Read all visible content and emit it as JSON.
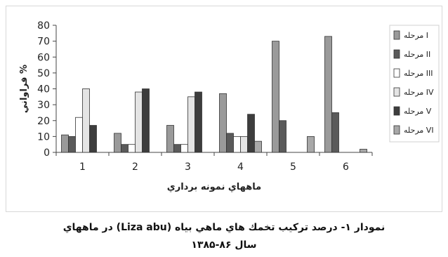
{
  "chart_data": {
    "type": "bar",
    "title": "",
    "xlabel": "ماههاي نمونه برداري",
    "ylabel": "فراواني %",
    "categories": [
      "1",
      "2",
      "3",
      "4",
      "5",
      "6"
    ],
    "ylim": [
      0,
      80
    ],
    "yticks": [
      "0",
      "10",
      "20",
      "30",
      "40",
      "50",
      "60",
      "70",
      "80"
    ],
    "grid": false,
    "legend": "right",
    "series": [
      {
        "name": "مرحله I",
        "color": "#9a9a9a",
        "values": [
          11,
          12,
          17,
          37,
          70,
          73
        ]
      },
      {
        "name": "مرحله II",
        "color": "#5a5a5a",
        "values": [
          10,
          5,
          5,
          12,
          20,
          25
        ]
      },
      {
        "name": "مرحله III",
        "color": "#ffffff",
        "values": [
          22,
          5,
          5,
          10,
          0,
          0
        ]
      },
      {
        "name": "مرحله IV",
        "color": "#e4e4e4",
        "values": [
          40,
          38,
          35,
          10,
          0,
          0
        ]
      },
      {
        "name": "مرحله V",
        "color": "#3d3d3d",
        "values": [
          17,
          40,
          38,
          24,
          0,
          0
        ]
      },
      {
        "name": "مرحله VI",
        "color": "#a8a8a8",
        "values": [
          0,
          0,
          0,
          7,
          10,
          2
        ]
      }
    ]
  },
  "caption": {
    "line1": "نمودار ۱- درصد تركيب تخمك هاي  ماهي بياه (Liza abu) در ماههاي",
    "line2": "سال ۸۶-۱۳۸۵"
  }
}
